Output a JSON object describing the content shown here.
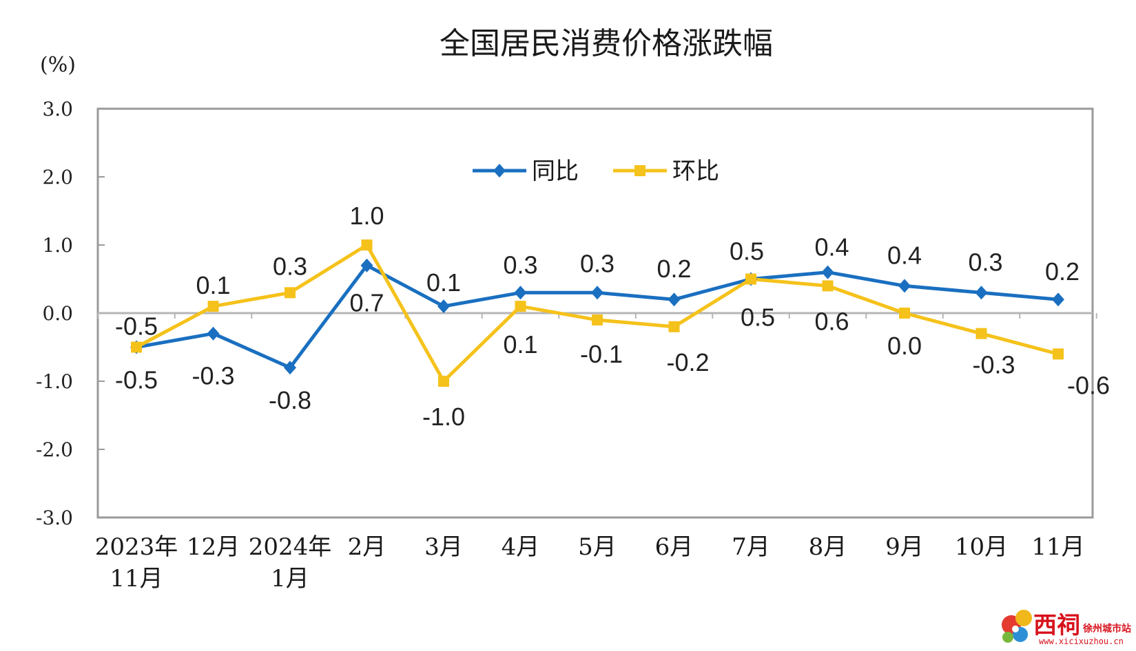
{
  "chart_data": {
    "type": "line",
    "title": "全国居民消费价格涨跌幅",
    "ylabel": "(%)",
    "ylim": [
      -3.0,
      3.0
    ],
    "yticks": [
      "3.0",
      "2.0",
      "1.0",
      "0.0",
      "-1.0",
      "-2.0",
      "-3.0"
    ],
    "ytick_values": [
      3,
      2,
      1,
      0,
      -1,
      -2,
      -3
    ],
    "categories": [
      [
        "2023年",
        "11月"
      ],
      [
        "12月"
      ],
      [
        "2024年",
        "1月"
      ],
      [
        "2月"
      ],
      [
        "3月"
      ],
      [
        "4月"
      ],
      [
        "5月"
      ],
      [
        "6月"
      ],
      [
        "7月"
      ],
      [
        "8月"
      ],
      [
        "9月"
      ],
      [
        "10月"
      ],
      [
        "11月"
      ]
    ],
    "series": [
      {
        "name": "同比",
        "color": "#1a6fc0",
        "marker": "diamond",
        "values": [
          -0.5,
          -0.3,
          -0.8,
          0.7,
          0.1,
          0.3,
          0.3,
          0.2,
          0.5,
          0.6,
          0.4,
          0.3,
          0.2
        ],
        "labels": [
          "-0.5",
          "-0.3",
          "-0.8",
          "0.7",
          "0.1",
          "0.3",
          "0.3",
          "0.2",
          "0.5",
          "0.6",
          "0.4",
          "0.3",
          "0.2"
        ]
      },
      {
        "name": "环比",
        "color": "#f5c21b",
        "marker": "square",
        "values": [
          -0.5,
          0.1,
          0.3,
          1.0,
          -1.0,
          0.1,
          -0.1,
          -0.2,
          0.5,
          0.4,
          0.0,
          -0.3,
          -0.6
        ],
        "labels": [
          "-0.5",
          "0.1",
          "0.3",
          "1.0",
          "-1.0",
          "0.1",
          "-0.1",
          "-0.2",
          "0.5",
          "0.4",
          "0.0",
          "-0.3",
          "-0.6"
        ]
      }
    ],
    "grid": false,
    "legend_position": "top-center"
  },
  "watermark": {
    "name": "西祠",
    "subtitle": "徐州城市站",
    "url": "www.xicixuzhou.cn"
  }
}
